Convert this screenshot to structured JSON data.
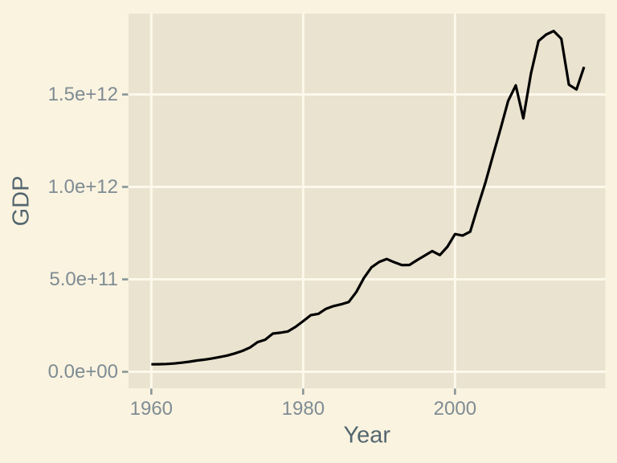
{
  "figure": {
    "background_color": "#FAF3E0",
    "panel_color": "#E9E3CF",
    "gridline_color": "#FCF8EB",
    "line_color": "#000000",
    "axis_title_color": "#54666F",
    "tick_label_color": "#7E8C93",
    "tick_mark_color": "#879696"
  },
  "chart_data": {
    "type": "line",
    "title": "",
    "xlabel": "Year",
    "ylabel": "GDP",
    "grid": "major-only",
    "legend": "none",
    "xlim": [
      1957.0,
      2019.8
    ],
    "ylim": [
      -89000000000.0,
      1937000000000.0
    ],
    "x_ticks": {
      "values": [
        1960,
        1980,
        2000
      ],
      "labels": [
        "1960",
        "1980",
        "2000"
      ]
    },
    "y_ticks": {
      "values": [
        0,
        500000000000.0,
        1000000000000.0,
        1500000000000.0
      ],
      "labels": [
        "0.0e+00",
        "5.0e+11",
        "1.0e+12",
        "1.5e+12"
      ]
    },
    "series": [
      {
        "name": "GDP",
        "x": [
          1960,
          1961,
          1962,
          1963,
          1964,
          1965,
          1966,
          1967,
          1968,
          1969,
          1970,
          1971,
          1972,
          1973,
          1974,
          1975,
          1976,
          1977,
          1978,
          1979,
          1980,
          1981,
          1982,
          1983,
          1984,
          1985,
          1986,
          1987,
          1988,
          1989,
          1990,
          1991,
          1992,
          1993,
          1994,
          1995,
          1996,
          1997,
          1998,
          1999,
          2000,
          2001,
          2002,
          2003,
          2004,
          2005,
          2006,
          2007,
          2008,
          2009,
          2010,
          2011,
          2012,
          2013,
          2014,
          2015,
          2016,
          2017
        ],
        "values": [
          40500000000.0,
          40900000000.0,
          42200000000.0,
          45000000000.0,
          49400000000.0,
          54500000000.0,
          61100000000.0,
          65700000000.0,
          72500000000.0,
          79800000000.0,
          87900000000.0,
          99300000000.0,
          113100000000.0,
          131300000000.0,
          160400000000.0,
          173800000000.0,
          206600000000.0,
          211600000000.0,
          218400000000.0,
          243100000000.0,
          273900000000.0,
          306200000000.0,
          313500000000.0,
          340600000000.0,
          355400000000.0,
          364800000000.0,
          377700000000.0,
          431300000000.0,
          507400000000.0,
          565100000000.0,
          593900000000.0,
          610300000000.0,
          592400000000.0,
          577200000000.0,
          578100000000.0,
          604000000000.0,
          628500000000.0,
          652800000000.0,
          631400000000.0,
          676100000000.0,
          744800000000.0,
          736400000000.0,
          758000000000.0,
          892400000000.0,
          1023000000000.0,
          1169000000000.0,
          1315000000000.0,
          1465000000000.0,
          1549000000000.0,
          1371000000000.0,
          1613000000000.0,
          1789000000000.0,
          1824000000000.0,
          1843000000000.0,
          1801000000000.0,
          1553000000000.0,
          1527000000000.0,
          1649000000000.0
        ]
      }
    ]
  }
}
